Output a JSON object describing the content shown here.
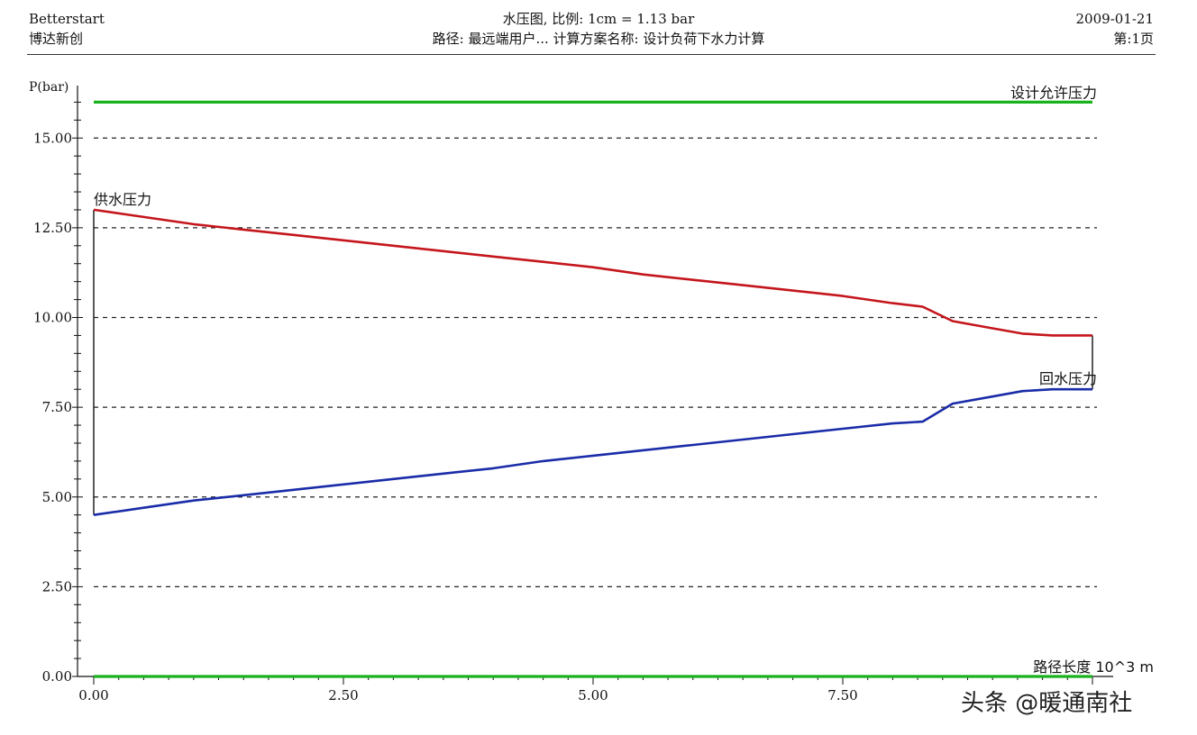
{
  "header": {
    "left_line1": "Betterstart",
    "left_line2": "博达新创",
    "center_line1": "水压图, 比例: 1cm = 1.13 bar",
    "center_line2": "路径: 最远端用户... 计算方案名称: 设计负荷下水力计算",
    "right_line1": "2009-01-21",
    "right_line2": "第:1页"
  },
  "chart_data": {
    "type": "line",
    "ylabel": "P(bar)",
    "xlabel": "路径长度 10^3 m",
    "xlim": [
      0,
      10
    ],
    "ylim": [
      0,
      16.5
    ],
    "x_ticks": [
      "0.00",
      "2.50",
      "5.00",
      "7.50"
    ],
    "y_ticks": [
      "0.00",
      "2.50",
      "5.00",
      "7.50",
      "10.00",
      "12.50",
      "15.00"
    ],
    "grid": "dashed horizontal",
    "series": [
      {
        "name": "设计允许压力",
        "color": "#19b21e",
        "x": [
          0,
          10
        ],
        "y": [
          16.0,
          16.0
        ]
      },
      {
        "name": "供水压力",
        "color": "#c4161c",
        "x": [
          0,
          0.5,
          1,
          1.5,
          2,
          2.5,
          3,
          3.5,
          4,
          4.5,
          5,
          5.5,
          6,
          6.5,
          7,
          7.5,
          8,
          8.3,
          8.6,
          9,
          9.3,
          9.6,
          10
        ],
        "y": [
          13.0,
          12.8,
          12.6,
          12.45,
          12.3,
          12.15,
          12.0,
          11.85,
          11.7,
          11.55,
          11.4,
          11.2,
          11.05,
          10.9,
          10.75,
          10.6,
          10.4,
          10.3,
          9.9,
          9.7,
          9.55,
          9.5,
          9.5
        ]
      },
      {
        "name": "回水压力",
        "color": "#1a2ca8",
        "x": [
          0,
          0.5,
          1,
          1.5,
          2,
          2.5,
          3,
          3.5,
          4,
          4.5,
          5,
          5.5,
          6,
          6.5,
          7,
          7.5,
          8,
          8.3,
          8.6,
          9,
          9.3,
          9.6,
          10
        ],
        "y": [
          4.5,
          4.7,
          4.9,
          5.05,
          5.2,
          5.35,
          5.5,
          5.65,
          5.8,
          6.0,
          6.15,
          6.3,
          6.45,
          6.6,
          6.75,
          6.9,
          7.05,
          7.1,
          7.6,
          7.8,
          7.95,
          8.0,
          8.0
        ]
      },
      {
        "name": "",
        "color": "#19b21e",
        "x": [
          0,
          10
        ],
        "y": [
          0.0,
          0.0
        ]
      }
    ]
  },
  "watermark": "头条 @暖通南社"
}
